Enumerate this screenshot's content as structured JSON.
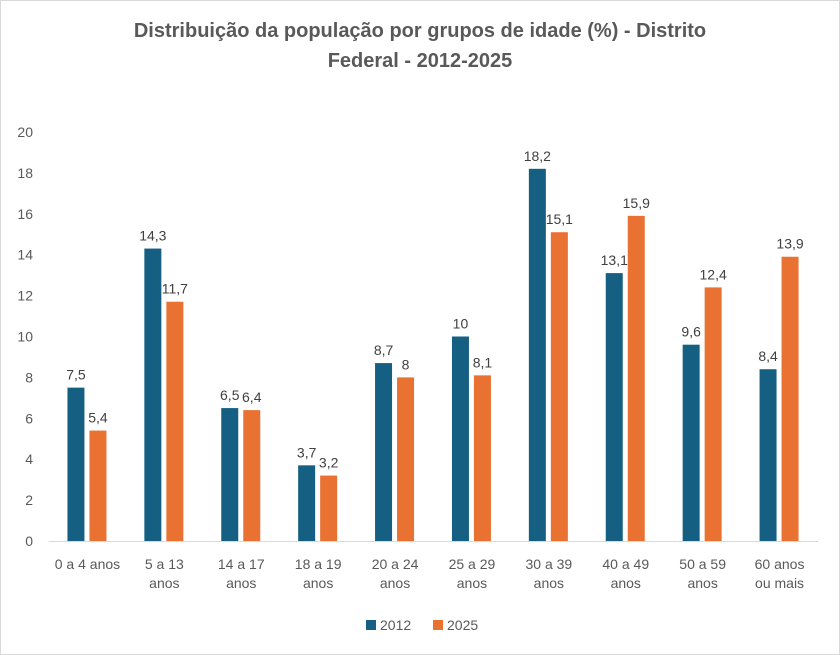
{
  "chart_data": {
    "type": "bar",
    "title_line1": "Distribuição da população por grupos de idade (%) - Distrito",
    "title_line2": "Federal - 2012-2025",
    "categories": [
      [
        "0 a 4 anos"
      ],
      [
        "5 a 13",
        "anos"
      ],
      [
        "14 a 17",
        "anos"
      ],
      [
        "18 a 19",
        "anos"
      ],
      [
        "20 a 24",
        "anos"
      ],
      [
        "25 a 29",
        "anos"
      ],
      [
        "30 a 39",
        "anos"
      ],
      [
        "40 a 49",
        "anos"
      ],
      [
        "50 a 59",
        "anos"
      ],
      [
        "60 anos",
        "ou mais"
      ]
    ],
    "series": [
      {
        "name": "2012",
        "color": "#156082",
        "values": [
          7.5,
          14.3,
          6.5,
          3.7,
          8.7,
          10,
          18.2,
          13.1,
          9.6,
          8.4
        ],
        "labels": [
          "7,5",
          "14,3",
          "6,5",
          "3,7",
          "8,7",
          "10",
          "18,2",
          "13,1",
          "9,6",
          "8,4"
        ]
      },
      {
        "name": "2025",
        "color": "#E97132",
        "values": [
          5.4,
          11.7,
          6.4,
          3.2,
          8,
          8.1,
          15.1,
          15.9,
          12.4,
          13.9
        ],
        "labels": [
          "5,4",
          "11,7",
          "6,4",
          "3,2",
          "8",
          "8,1",
          "15,1",
          "15,9",
          "12,4",
          "13,9"
        ]
      }
    ],
    "ylim": [
      0,
      20
    ],
    "yticks": [
      0,
      2,
      4,
      6,
      8,
      10,
      12,
      14,
      16,
      18,
      20
    ],
    "grid": false,
    "legend_position": "bottom"
  }
}
